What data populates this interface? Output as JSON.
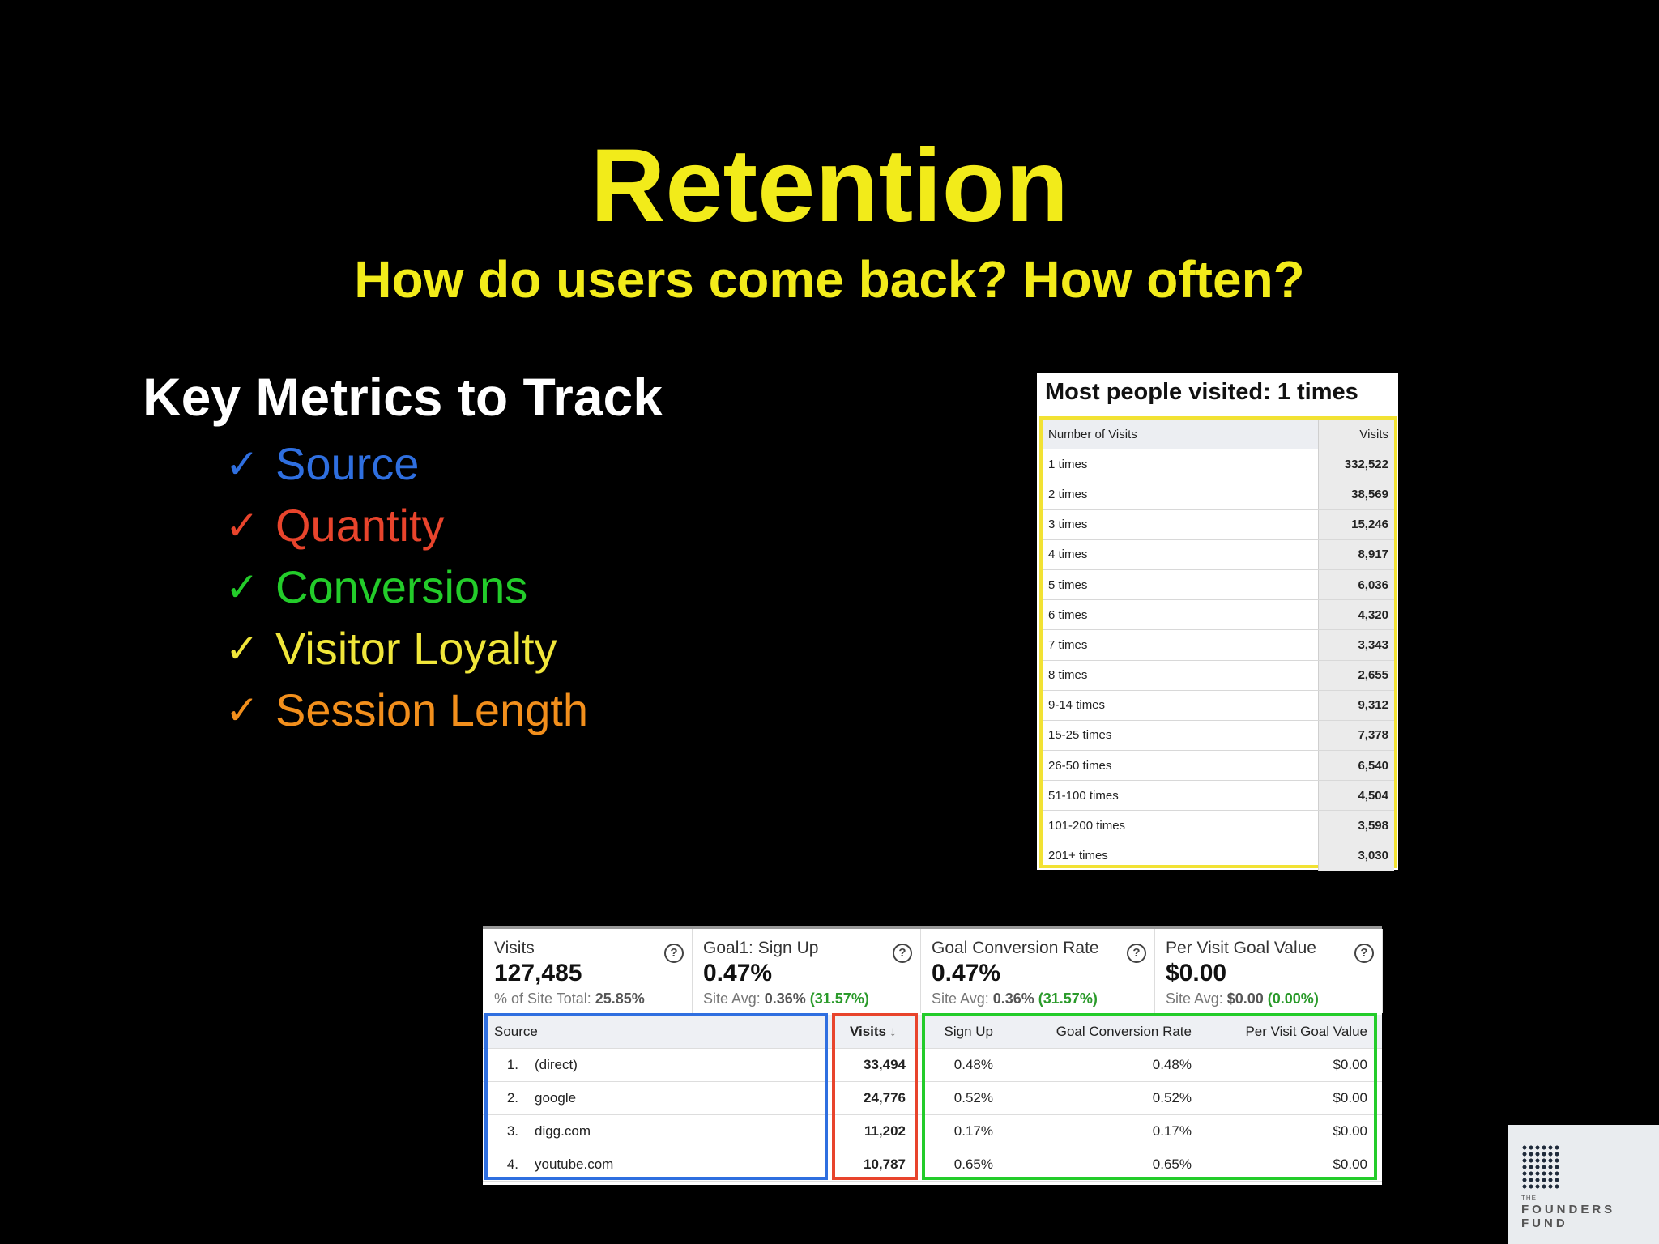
{
  "slide": {
    "title": "Retention",
    "subtitle": "How do users come back? How often?",
    "metrics_heading": "Key Metrics to Track",
    "check_glyph": "✓",
    "metrics": [
      {
        "label": "Source",
        "color": "#2f6fe0"
      },
      {
        "label": "Quantity",
        "color": "#e8442c"
      },
      {
        "label": "Conversions",
        "color": "#23cc2a"
      },
      {
        "label": "Visitor Loyalty",
        "color": "#f0e63a"
      },
      {
        "label": "Session Length",
        "color": "#f28f1c"
      }
    ]
  },
  "loyalty": {
    "heading": "Most people visited: 1 times",
    "col_number": "Number of Visits",
    "col_visits": "Visits",
    "rows": [
      {
        "n": "1 times",
        "v": "332,522"
      },
      {
        "n": "2 times",
        "v": "38,569"
      },
      {
        "n": "3 times",
        "v": "15,246"
      },
      {
        "n": "4 times",
        "v": "8,917"
      },
      {
        "n": "5 times",
        "v": "6,036"
      },
      {
        "n": "6 times",
        "v": "4,320"
      },
      {
        "n": "7 times",
        "v": "3,343"
      },
      {
        "n": "8 times",
        "v": "2,655"
      },
      {
        "n": "9-14 times",
        "v": "9,312"
      },
      {
        "n": "15-25 times",
        "v": "7,378"
      },
      {
        "n": "26-50 times",
        "v": "6,540"
      },
      {
        "n": "51-100 times",
        "v": "4,504"
      },
      {
        "n": "101-200 times",
        "v": "3,598"
      },
      {
        "n": "201+ times",
        "v": "3,030"
      }
    ]
  },
  "analytics": {
    "summary": [
      {
        "label": "Visits",
        "value": "127,485",
        "sub": "% of Site Total: ",
        "sub_bold": "25.85%",
        "sub_pct": ""
      },
      {
        "label": "Goal1: Sign Up",
        "value": "0.47%",
        "sub": "Site Avg: ",
        "sub_bold": "0.36%",
        "sub_pct": "(31.57%)"
      },
      {
        "label": "Goal Conversion Rate",
        "value": "0.47%",
        "sub": "Site Avg: ",
        "sub_bold": "0.36%",
        "sub_pct": "(31.57%)"
      },
      {
        "label": "Per Visit Goal Value",
        "value": "$0.00",
        "sub": "Site Avg: ",
        "sub_bold": "$0.00",
        "sub_pct": "(0.00%)"
      }
    ],
    "help_glyph": "?",
    "headers": {
      "source": "Source",
      "visits": "Visits",
      "signup": "Sign Up",
      "gcr": "Goal Conversion Rate",
      "pvgv": "Per Visit Goal Value"
    },
    "sort_glyph": "↓",
    "rows": [
      {
        "idx": "1.",
        "source": "(direct)",
        "visits": "33,494",
        "signup": "0.48%",
        "gcr": "0.48%",
        "pvgv": "$0.00"
      },
      {
        "idx": "2.",
        "source": "google",
        "visits": "24,776",
        "signup": "0.52%",
        "gcr": "0.52%",
        "pvgv": "$0.00"
      },
      {
        "idx": "3.",
        "source": "digg.com",
        "visits": "11,202",
        "signup": "0.17%",
        "gcr": "0.17%",
        "pvgv": "$0.00"
      },
      {
        "idx": "4.",
        "source": "youtube.com",
        "visits": "10,787",
        "signup": "0.65%",
        "gcr": "0.65%",
        "pvgv": "$0.00"
      }
    ],
    "frame_colors": {
      "source": "#2f6fe0",
      "visits": "#e8442c",
      "goals": "#23cc2a"
    }
  },
  "logo": {
    "small": "THE",
    "word": "FOUNDERS FUND"
  }
}
